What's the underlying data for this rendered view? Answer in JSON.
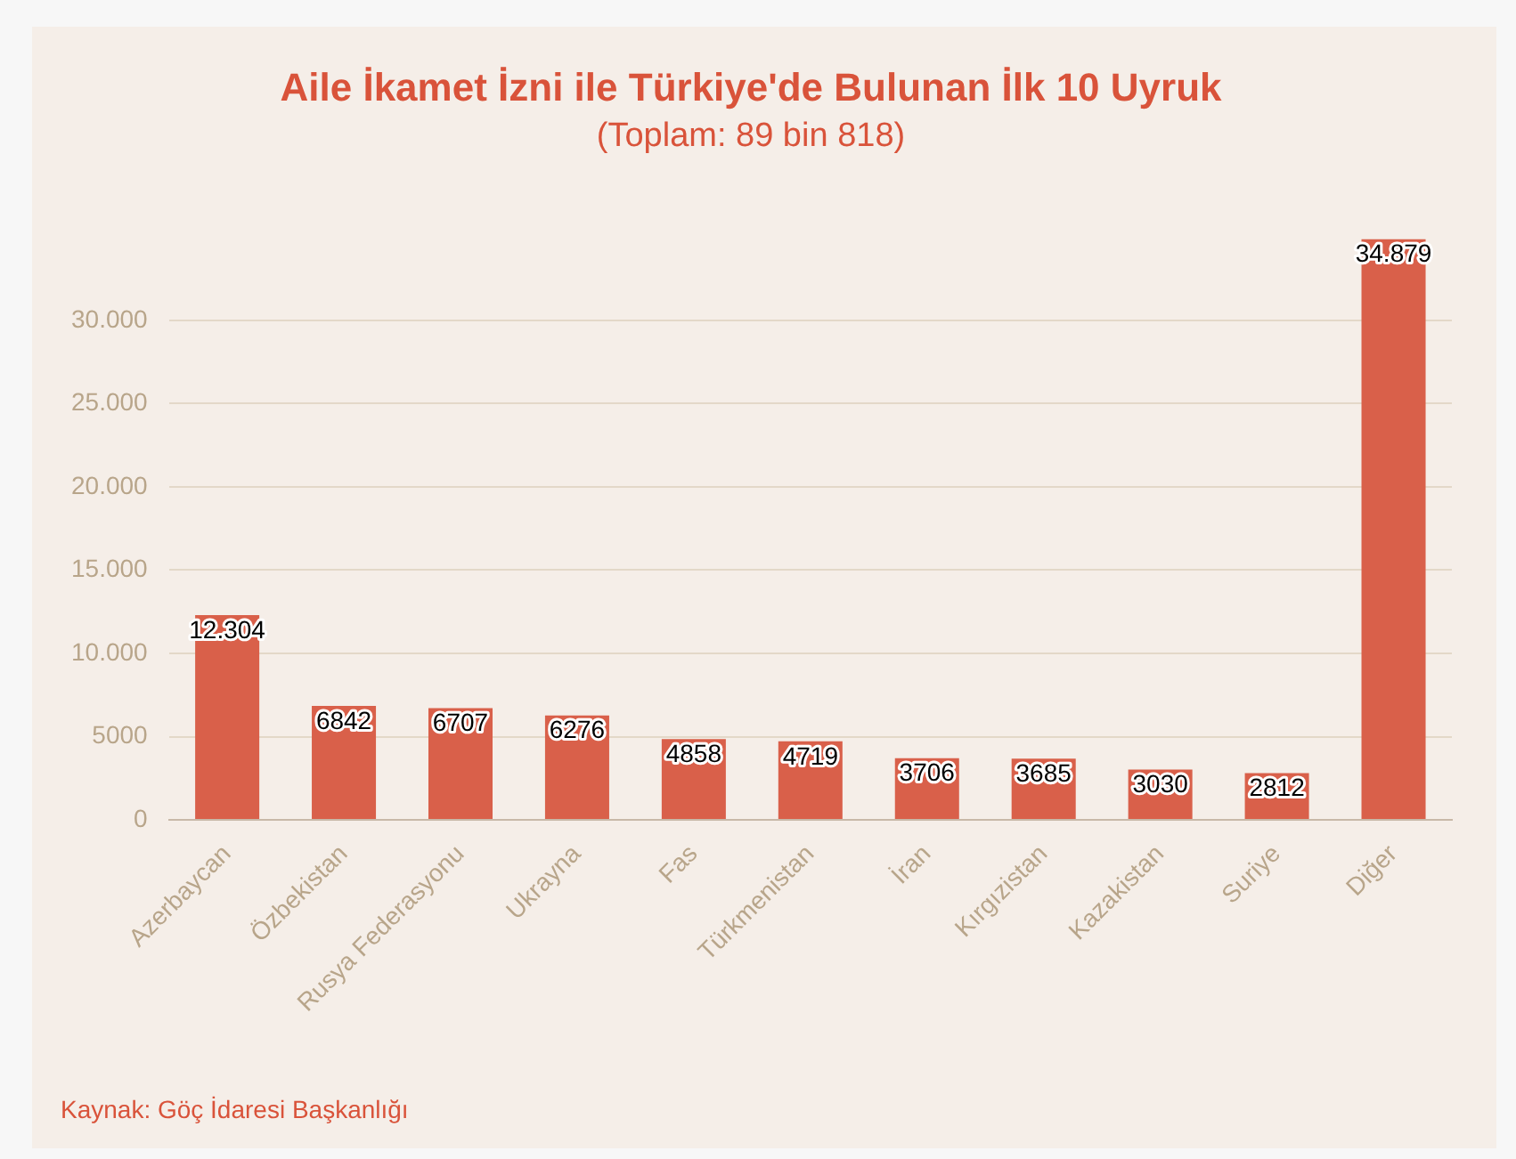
{
  "chart_data": {
    "type": "bar",
    "title": "Aile İkamet İzni ile Türkiye'de Bulunan İlk 10 Uyruk",
    "subtitle": "(Toplam: 89 bin 818)",
    "categories": [
      "Azerbaycan",
      "Özbekistan",
      "Rusya Federasyonu",
      "Ukrayna",
      "Fas",
      "Türkmenistan",
      "İran",
      "Kırgızistan",
      "Kazakistan",
      "Suriye",
      "Diğer"
    ],
    "values": [
      12304,
      6842,
      6707,
      6276,
      4858,
      4719,
      3706,
      3685,
      3030,
      2812,
      34879
    ],
    "value_labels": [
      "12.304",
      "6842",
      "6707",
      "6276",
      "4858",
      "4719",
      "3706",
      "3685",
      "3030",
      "2812",
      "34.879"
    ],
    "color": "#d9604a",
    "ylim": [
      0,
      35000
    ],
    "yticks": [
      0,
      5000,
      {
        "value": 10000,
        "label": "10.000"
      },
      {
        "value": 15000,
        "label": "15.000"
      },
      {
        "value": 20000,
        "label": "20.000"
      },
      {
        "value": 25000,
        "label": "25.000"
      },
      {
        "value": 30000,
        "label": "30.000"
      }
    ],
    "grid": "y",
    "legend": false,
    "annotations": [
      "Kaynak: Göç İdaresi Başkanlığı"
    ]
  }
}
